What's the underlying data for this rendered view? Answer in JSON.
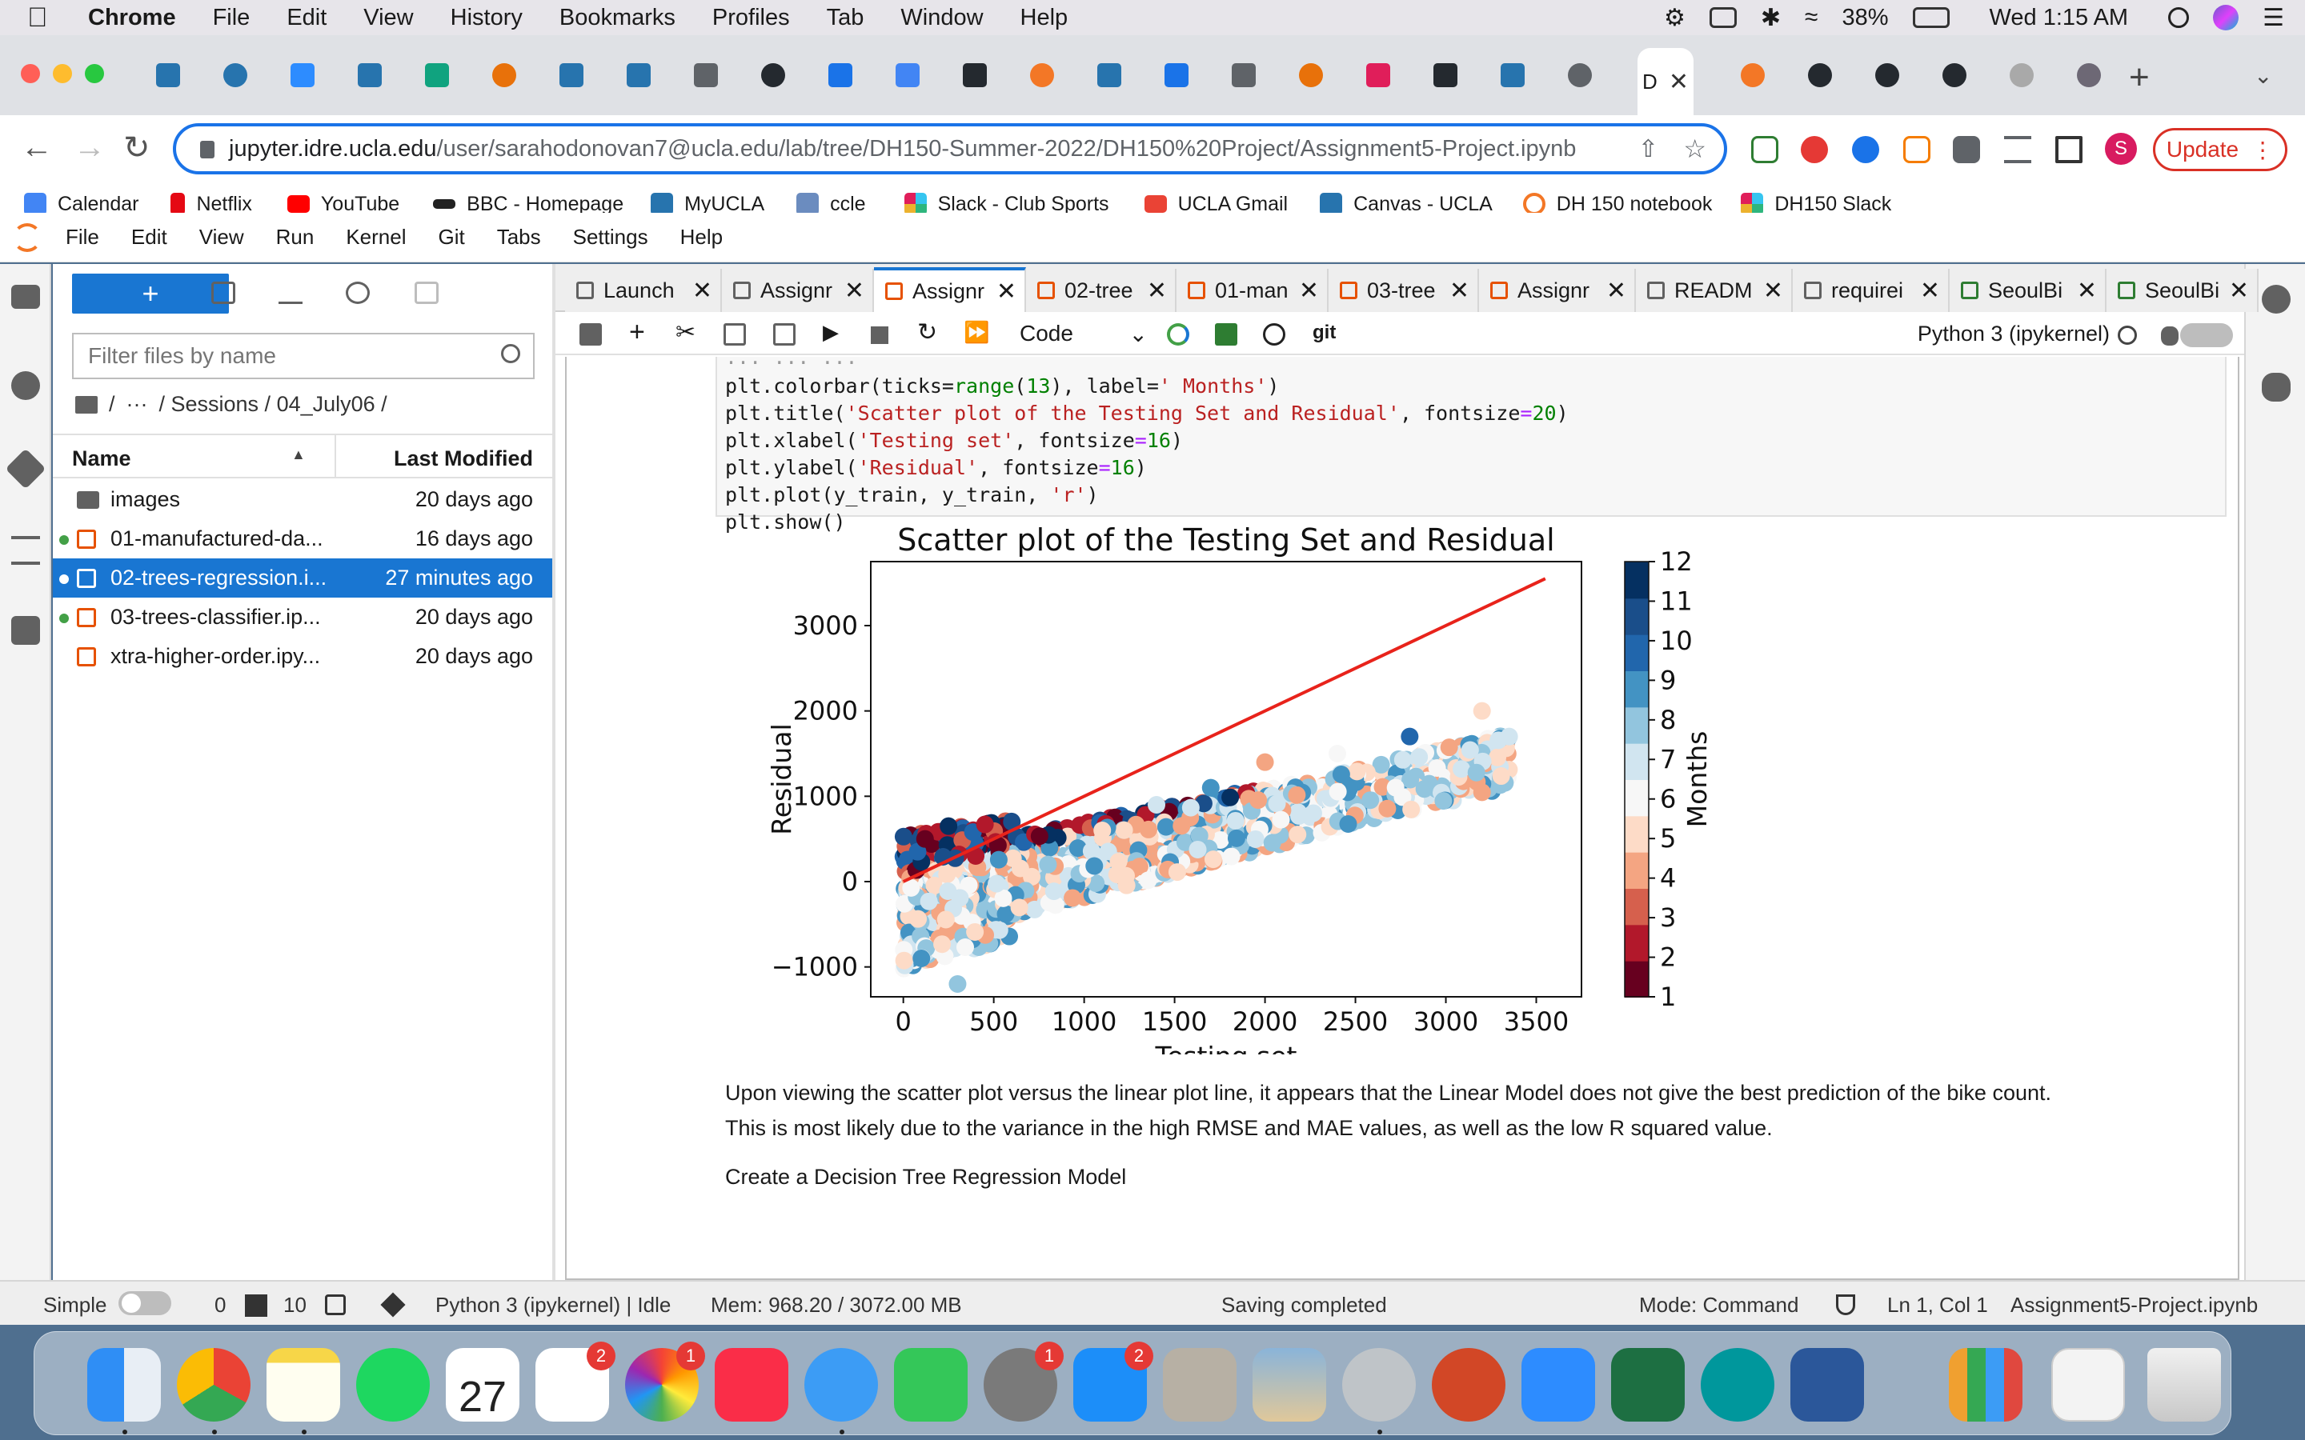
{
  "menubar": {
    "app": "Chrome",
    "items": [
      "File",
      "Edit",
      "View",
      "History",
      "Bookmarks",
      "Profiles",
      "Tab",
      "Window",
      "Help"
    ],
    "battery": "38%",
    "clock": "Wed 1:15 AM"
  },
  "browser": {
    "active_tab_title": "D",
    "url_host": "jupyter.idre.ucla.edu",
    "url_path": "/user/sarahodonovan7@ucla.edu/lab/tree/DH150-Summer-2022/DH150%20Project/Assignment5-Project.ipynb",
    "update_label": "Update",
    "profile_initial": "S",
    "bookmarks": [
      "Calendar",
      "Netflix",
      "YouTube",
      "BBC - Homepage",
      "MyUCLA",
      "ccle",
      "Slack - Club Sports",
      "UCLA Gmail",
      "Canvas - UCLA",
      "DH 150 notebook",
      "DH150 Slack"
    ]
  },
  "jupyter": {
    "menu": [
      "File",
      "Edit",
      "View",
      "Run",
      "Kernel",
      "Git",
      "Tabs",
      "Settings",
      "Help"
    ],
    "filebrowser": {
      "new_label": "+",
      "filter_placeholder": "Filter files by name",
      "breadcrumb": [
        "/",
        "···",
        "/ Sessions / 04_July06 /"
      ],
      "col_name": "Name",
      "col_modified": "Last Modified",
      "files": [
        {
          "name": "images",
          "modified": "20 days ago"
        },
        {
          "name": "01-manufactured-da...",
          "modified": "16 days ago"
        },
        {
          "name": "02-trees-regression.i...",
          "modified": "27 minutes ago"
        },
        {
          "name": "03-trees-classifier.ip...",
          "modified": "20 days ago"
        },
        {
          "name": "xtra-higher-order.ipy...",
          "modified": "20 days ago"
        }
      ]
    },
    "tabs": [
      "Launch",
      "Assignr",
      "Assignr",
      "02-tree",
      "01-man",
      "03-tree",
      "Assignr",
      "READM",
      "requirei",
      "SeoulBi",
      "SeoulBi"
    ],
    "toolbar": {
      "cell_type": "Code",
      "git": "git",
      "kernel": "Python 3 (ipykernel)"
    },
    "code_lines": [
      "plt.colorbar(ticks=range(13), label=' Months')",
      "plt.title('Scatter plot of the Testing Set and Residual', fontsize=20)",
      "plt.xlabel('Testing set', fontsize=16)",
      "plt.ylabel('Residual', fontsize=16)",
      "plt.plot(y_train, y_train, 'r')",
      "plt.show()"
    ],
    "markdown": [
      "Upon viewing the scatter plot versus the linear plot line, it appears that the Linear Model does not give the best prediction of the bike count.",
      "This is most likely due to the variance in the high RMSE and MAE values, as well as the low R squared value."
    ],
    "next_heading": "Create a Decision Tree Regression Model",
    "status": {
      "mode_label": "Simple",
      "terminals": "0",
      "kernels": "10",
      "kernel_status": "Python 3 (ipykernel) | Idle",
      "mem": "Mem: 968.20 / 3072.00 MB",
      "saving": "Saving completed",
      "mode": "Mode: Command",
      "cursor": "Ln 1, Col 1",
      "file": "Assignment5-Project.ipynb"
    }
  },
  "chart_data": {
    "type": "scatter",
    "title": "Scatter plot of the Testing Set and Residual",
    "xlabel": "Testing set",
    "ylabel": "Residual",
    "xlim": [
      -180,
      3750
    ],
    "ylim": [
      -1350,
      3750
    ],
    "xticks": [
      0,
      500,
      1000,
      1500,
      2000,
      2500,
      3000,
      3500
    ],
    "yticks": [
      -1000,
      0,
      1000,
      2000,
      3000
    ],
    "xtick_labels": [
      "0",
      "500",
      "1000",
      "1500",
      "2000",
      "2500",
      "3000",
      "3500"
    ],
    "ytick_labels": [
      "−1000",
      "0",
      "1000",
      "2000",
      "3000"
    ],
    "line": {
      "x": [
        0,
        3550
      ],
      "y": [
        0,
        3550
      ],
      "color": "#e8231b"
    },
    "colorbar": {
      "label": "Months",
      "ticks": [
        "1",
        "2",
        "3",
        "4",
        "5",
        "6",
        "7",
        "8",
        "9",
        "10",
        "11",
        "12"
      ],
      "cmap": "RdBu"
    },
    "points_sample": [
      {
        "x": 120,
        "y": 500,
        "c": 1
      },
      {
        "x": 250,
        "y": 650,
        "c": 12
      },
      {
        "x": 400,
        "y": 300,
        "c": 2
      },
      {
        "x": 600,
        "y": 700,
        "c": 11
      },
      {
        "x": 800,
        "y": 200,
        "c": 8
      },
      {
        "x": 1100,
        "y": 600,
        "c": 5
      },
      {
        "x": 1400,
        "y": 900,
        "c": 7
      },
      {
        "x": 1700,
        "y": 1100,
        "c": 9
      },
      {
        "x": 2000,
        "y": 1400,
        "c": 4
      },
      {
        "x": 2400,
        "y": 1500,
        "c": 6
      },
      {
        "x": 2800,
        "y": 1700,
        "c": 10
      },
      {
        "x": 3200,
        "y": 2000,
        "c": 5
      },
      {
        "x": 3350,
        "y": 1700,
        "c": 7
      },
      {
        "x": 300,
        "y": -1200,
        "c": 8
      },
      {
        "x": 100,
        "y": -900,
        "c": 9
      }
    ]
  }
}
